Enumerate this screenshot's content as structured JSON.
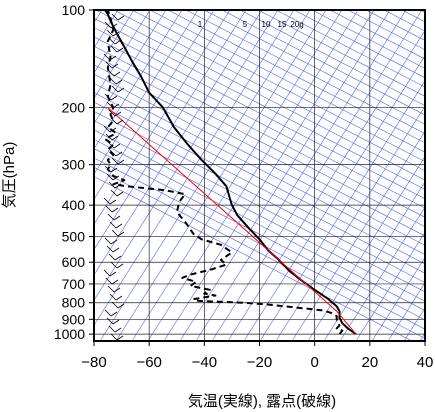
{
  "chart_data": {
    "type": "line",
    "title": "",
    "xlabel": "気温(実線), 露点(破線)",
    "ylabel": "気圧(hPa)",
    "xlim": [
      -80,
      40
    ],
    "ylim": [
      1050,
      100
    ],
    "y_scale": "log",
    "x_ticks": [
      "−80",
      "−60",
      "−40",
      "−20",
      "0",
      "20",
      "40"
    ],
    "x_tick_values": [
      -80,
      -60,
      -40,
      -20,
      0,
      20,
      40
    ],
    "y_ticks": [
      "100",
      "200",
      "300",
      "400",
      "500",
      "600",
      "700",
      "800",
      "900",
      "1000"
    ],
    "y_tick_values": [
      100,
      200,
      300,
      400,
      500,
      600,
      700,
      800,
      900,
      1000
    ],
    "mixing_ratio_labels": [
      "1",
      "5",
      "10",
      "15",
      "20g"
    ],
    "mixing_ratio_values": [
      1,
      5,
      10,
      15,
      20
    ],
    "series": [
      {
        "style": "solid",
        "color": "#000000",
        "points": [
          [
            15,
            1000
          ],
          [
            12,
            960
          ],
          [
            10,
            925
          ],
          [
            9,
            890
          ],
          [
            9,
            850
          ],
          [
            8,
            820
          ],
          [
            5,
            780
          ],
          [
            -1,
            720
          ],
          [
            -4,
            690
          ],
          [
            -9,
            640
          ],
          [
            -13,
            590
          ],
          [
            -17,
            550
          ],
          [
            -20,
            510
          ],
          [
            -24,
            470
          ],
          [
            -28,
            430
          ],
          [
            -30,
            400
          ],
          [
            -31,
            375
          ],
          [
            -32,
            350
          ],
          [
            -36,
            320
          ],
          [
            -41,
            290
          ],
          [
            -46,
            260
          ],
          [
            -51,
            230
          ],
          [
            -55,
            200
          ],
          [
            -60,
            180
          ],
          [
            -63,
            160
          ],
          [
            -66,
            145
          ],
          [
            -69,
            130
          ],
          [
            -72,
            117
          ],
          [
            -74,
            108
          ],
          [
            -75,
            103
          ],
          [
            -76,
            100
          ]
        ]
      },
      {
        "style": "dashed",
        "color": "#000000",
        "points": [
          [
            9,
            1000
          ],
          [
            10,
            975
          ],
          [
            8,
            960
          ],
          [
            9,
            940
          ],
          [
            8,
            900
          ],
          [
            8,
            880
          ],
          [
            6,
            860
          ],
          [
            3,
            845
          ],
          [
            -17,
            810
          ],
          [
            -26,
            800
          ],
          [
            -42,
            790
          ],
          [
            -44,
            780
          ],
          [
            -36,
            760
          ],
          [
            -40,
            750
          ],
          [
            -38,
            730
          ],
          [
            -45,
            710
          ],
          [
            -43,
            690
          ],
          [
            -48,
            670
          ],
          [
            -45,
            655
          ],
          [
            -37,
            630
          ],
          [
            -32,
            610
          ],
          [
            -34,
            590
          ],
          [
            -30,
            560
          ],
          [
            -34,
            530
          ],
          [
            -41,
            510
          ],
          [
            -44,
            490
          ],
          [
            -47,
            450
          ],
          [
            -50,
            420
          ],
          [
            -49,
            390
          ],
          [
            -47,
            370
          ],
          [
            -54,
            360
          ],
          [
            -68,
            350
          ],
          [
            -73,
            345
          ],
          [
            -69,
            335
          ],
          [
            -73,
            325
          ],
          [
            -75,
            310
          ],
          [
            -74,
            300
          ],
          [
            -75,
            290
          ],
          [
            -73,
            280
          ],
          [
            -75,
            270
          ],
          [
            -73,
            260
          ],
          [
            -76,
            250
          ],
          [
            -72,
            240
          ],
          [
            -75,
            230
          ],
          [
            -73,
            220
          ],
          [
            -74,
            210
          ],
          [
            -73,
            200
          ],
          [
            -75,
            185
          ],
          [
            -74,
            170
          ],
          [
            -75,
            150
          ],
          [
            -74,
            140
          ],
          [
            -75,
            125
          ],
          [
            -73,
            115
          ],
          [
            -74,
            106
          ],
          [
            -75,
            100
          ]
        ]
      },
      {
        "style": "solid",
        "color": "#ff0000",
        "points": [
          [
            15,
            1000
          ],
          [
            8,
            850
          ],
          [
            -75,
            200
          ]
        ]
      }
    ]
  }
}
